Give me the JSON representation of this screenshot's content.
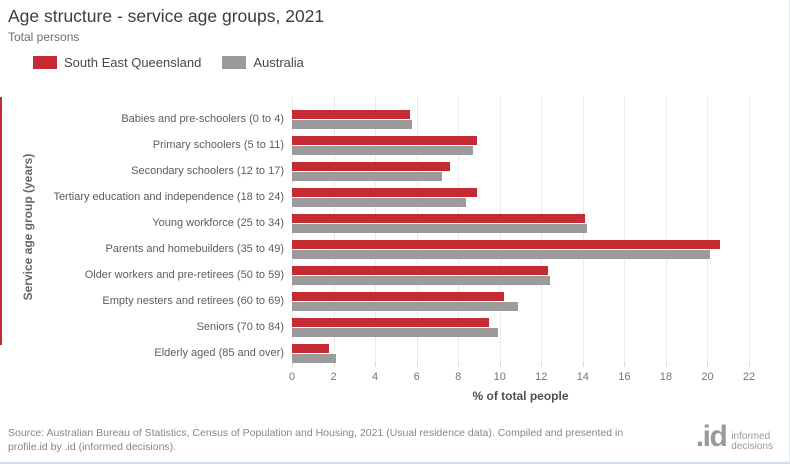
{
  "chart_data": {
    "type": "bar",
    "orientation": "horizontal",
    "title": "Age structure - service age groups, 2021",
    "subtitle": "Total persons",
    "categories": [
      "Babies and pre-schoolers (0 to 4)",
      "Primary schoolers (5 to 11)",
      "Secondary schoolers (12 to 17)",
      "Tertiary education and independence (18 to 24)",
      "Young workforce (25 to 34)",
      "Parents and homebuilders (35 to 49)",
      "Older workers and pre-retirees (50 to 59)",
      "Empty nesters and retirees (60 to 69)",
      "Seniors (70 to 84)",
      "Elderly aged (85 and over)"
    ],
    "series": [
      {
        "name": "South East Queensland",
        "color": "#c62a33",
        "values": [
          5.7,
          8.9,
          7.6,
          8.9,
          14.1,
          20.6,
          12.3,
          10.2,
          9.5,
          1.8
        ]
      },
      {
        "name": "Australia",
        "color": "#9b9b9b",
        "values": [
          5.8,
          8.7,
          7.2,
          8.4,
          14.2,
          20.1,
          12.4,
          10.9,
          9.9,
          2.1
        ]
      }
    ],
    "xlabel": "% of total people",
    "ylabel": "Service age group (years)",
    "xlim": [
      0,
      22
    ],
    "xticks": [
      0,
      2,
      4,
      6,
      8,
      10,
      12,
      14,
      16,
      18,
      20,
      22
    ],
    "grid": "vertical",
    "legend_position": "top-left",
    "accent_color": "#c62a33",
    "gridline_color": "#ebebeb"
  },
  "footer": {
    "source_line1": "Source: Australian Bureau of Statistics, Census of Population and Housing, 2021 (Usual residence data). Compiled and presented in",
    "source_line2": "profile.id by .id (informed decisions).",
    "logo_text": ".id",
    "logo_tagline_line1": "informed",
    "logo_tagline_line2": "decisions"
  }
}
